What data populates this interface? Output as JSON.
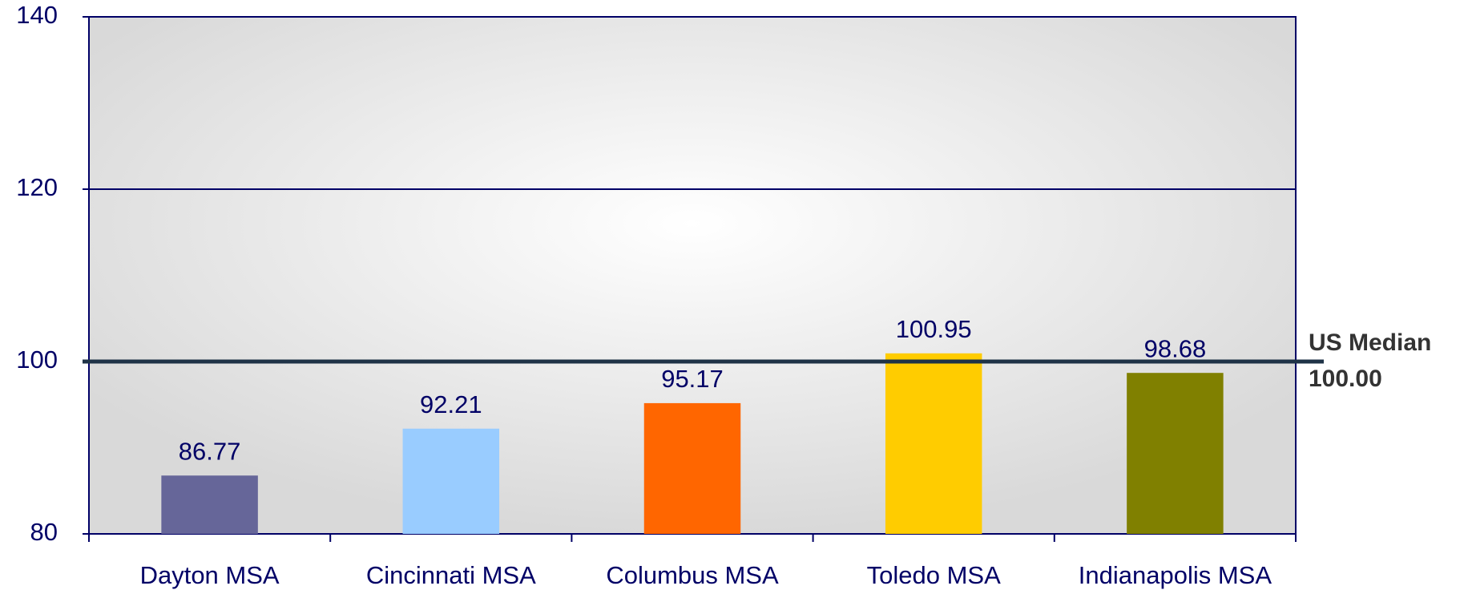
{
  "chart_data": {
    "type": "bar",
    "categories": [
      "Dayton MSA",
      "Cincinnati MSA",
      "Columbus MSA",
      "Toledo MSA",
      "Indianapolis MSA"
    ],
    "values": [
      86.77,
      92.21,
      95.17,
      100.95,
      98.68
    ],
    "colors": [
      "#666699",
      "#99ccff",
      "#ff6600",
      "#ffcc00",
      "#808000"
    ],
    "ylim": [
      80,
      140
    ],
    "yticks": [
      80,
      100,
      120,
      140
    ],
    "grid": true,
    "reference_line": {
      "name": "US Median",
      "value": 100,
      "value_label": "100.00",
      "color": "#1f3347"
    }
  }
}
